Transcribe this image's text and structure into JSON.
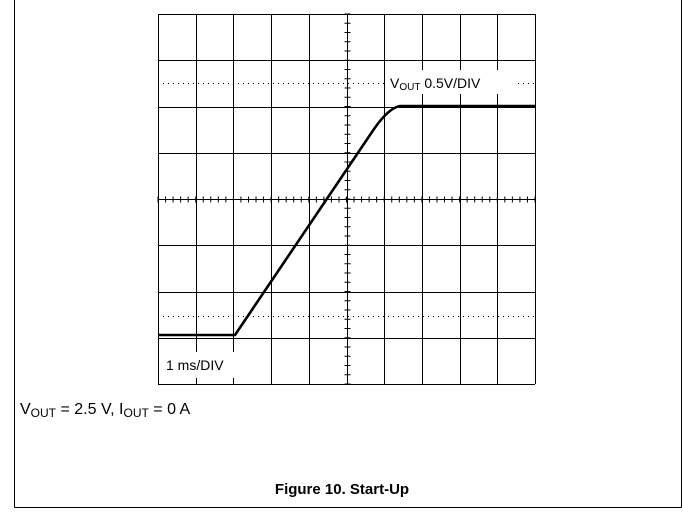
{
  "figure": {
    "trace_label": {
      "main": "V",
      "sub": "OUT",
      "rest": " 0.5V/DIV"
    },
    "timebase": "1 ms/DIV",
    "conditions": {
      "v": "V",
      "v_sub": "OUT",
      "v_rest": " = 2.5 V, ",
      "i": "I",
      "i_sub": "OUT",
      "i_rest": " = 0 A"
    },
    "title": "Figure 10. Start-Up"
  }
}
